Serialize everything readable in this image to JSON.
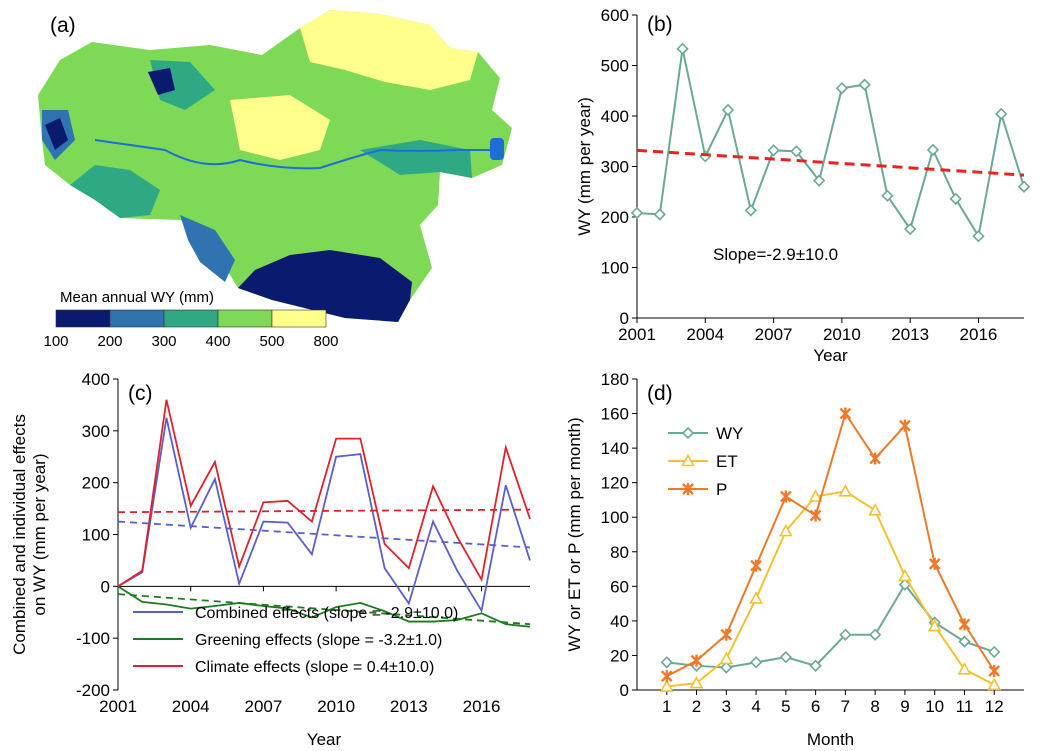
{
  "panels": {
    "a": {
      "label": "(a)",
      "legend_title": "Mean annual  WY (mm)",
      "legend_classes": [
        {
          "color": "#0a1a6e"
        },
        {
          "color": "#2f73b0"
        },
        {
          "color": "#2fa884"
        },
        {
          "color": "#7ed957"
        },
        {
          "color": "#ffff8c"
        }
      ],
      "legend_ticks": [
        "100",
        "200",
        "300",
        "400",
        "500",
        "800"
      ],
      "colors": {
        "dark": "#0a1a6e",
        "blue": "#2f73b0",
        "teal": "#2fa884",
        "green": "#7ed957",
        "yellow": "#ffff8c",
        "river": "#1d6fd6"
      }
    },
    "b": {
      "label": "(b)",
      "annotation": "Slope=-2.9±10.0"
    },
    "c": {
      "label": "(c)"
    },
    "d": {
      "label": "(d)"
    }
  },
  "chart_data": [
    {
      "panel": "b",
      "type": "line",
      "xlabel": "Year",
      "ylabel": "WY (mm per year)",
      "xlim": [
        2001,
        2018
      ],
      "ylim": [
        0,
        600
      ],
      "xticks": [
        "2001",
        "2004",
        "2007",
        "2010",
        "2013",
        "2016"
      ],
      "yticks": [
        "0",
        "100",
        "200",
        "300",
        "400",
        "500",
        "600"
      ],
      "x": [
        2001,
        2002,
        2003,
        2004,
        2005,
        2006,
        2007,
        2008,
        2009,
        2010,
        2011,
        2012,
        2013,
        2014,
        2015,
        2016,
        2017,
        2018
      ],
      "series": [
        {
          "values": [
            208,
            205,
            533,
            320,
            412,
            213,
            332,
            330,
            272,
            455,
            462,
            242,
            176,
            333,
            236,
            162,
            404,
            260
          ],
          "color": "#6aa898",
          "marker": "diamond"
        }
      ],
      "trend": {
        "from": [
          2001,
          332
        ],
        "to": [
          2018,
          283
        ],
        "color": "#e8241c",
        "style": "dashed"
      },
      "annotation": "Slope=-2.9±10.0"
    },
    {
      "panel": "c",
      "type": "line",
      "xlabel": "Year",
      "ylabel": "Combined and individual effects on WY (mm per year)",
      "ylabel_lines": [
        "Combined and individual effects",
        "on WY (mm per year)"
      ],
      "xlim": [
        2001,
        2018
      ],
      "ylim": [
        -200,
        400
      ],
      "xticks": [
        "2001",
        "2004",
        "2007",
        "2010",
        "2013",
        "2016"
      ],
      "yticks": [
        "-200",
        "-100",
        "0",
        "100",
        "200",
        "300",
        "400"
      ],
      "x": [
        2001,
        2002,
        2003,
        2004,
        2005,
        2006,
        2007,
        2008,
        2009,
        2010,
        2011,
        2012,
        2013,
        2014,
        2015,
        2016,
        2017,
        2018
      ],
      "series": [
        {
          "name": "Combined effects (slope = -2.9±10.0)",
          "color": "#5b5fcc",
          "values": [
            0,
            27,
            325,
            113,
            207,
            5,
            125,
            123,
            62,
            250,
            255,
            35,
            -33,
            125,
            30,
            -47,
            195,
            50
          ]
        },
        {
          "name": "Greening effects (slope = -3.2±1.0)",
          "color": "#1f7a1f",
          "values": [
            0,
            -30,
            -35,
            -43,
            -38,
            -32,
            -38,
            -43,
            -60,
            -40,
            -32,
            -48,
            -68,
            -68,
            -65,
            -52,
            -73,
            -78
          ]
        },
        {
          "name": "Climate effects (slope = 0.4±10.0)",
          "color": "#e0232b",
          "values": [
            0,
            30,
            360,
            155,
            240,
            38,
            162,
            165,
            125,
            285,
            285,
            82,
            35,
            193,
            95,
            13,
            268,
            130
          ]
        }
      ],
      "trends": [
        {
          "color": "#5b5fcc",
          "from": [
            2001,
            125
          ],
          "to": [
            2018,
            75
          ]
        },
        {
          "color": "#1f7a1f",
          "from": [
            2001,
            -15
          ],
          "to": [
            2018,
            -73
          ]
        },
        {
          "color": "#e0232b",
          "from": [
            2001,
            143
          ],
          "to": [
            2018,
            148
          ]
        }
      ]
    },
    {
      "panel": "d",
      "type": "line",
      "xlabel": "Month",
      "ylabel": "WY or ET or P (mm per month)",
      "xlim": [
        0,
        13
      ],
      "ylim": [
        0,
        180
      ],
      "x": [
        1,
        2,
        3,
        4,
        5,
        6,
        7,
        8,
        9,
        10,
        11,
        12
      ],
      "xticks": [
        "1",
        "2",
        "3",
        "4",
        "5",
        "6",
        "7",
        "8",
        "9",
        "10",
        "11",
        "12"
      ],
      "yticks": [
        "0",
        "20",
        "40",
        "60",
        "80",
        "100",
        "120",
        "140",
        "160",
        "180"
      ],
      "series": [
        {
          "name": "WY",
          "color": "#6aa898",
          "marker": "diamond",
          "values": [
            16,
            14,
            13,
            16,
            19,
            14,
            32,
            32,
            61,
            39,
            28,
            22
          ]
        },
        {
          "name": "ET",
          "color": "#f2c230",
          "marker": "triangle",
          "values": [
            2,
            4,
            18,
            53,
            92,
            112,
            115,
            104,
            66,
            37,
            12,
            3
          ]
        },
        {
          "name": "P",
          "color": "#f07a2a",
          "marker": "asterisk",
          "values": [
            8,
            17,
            32,
            72,
            112,
            101,
            160,
            134,
            153,
            73,
            38,
            11
          ]
        }
      ],
      "legend": "top-left"
    }
  ]
}
